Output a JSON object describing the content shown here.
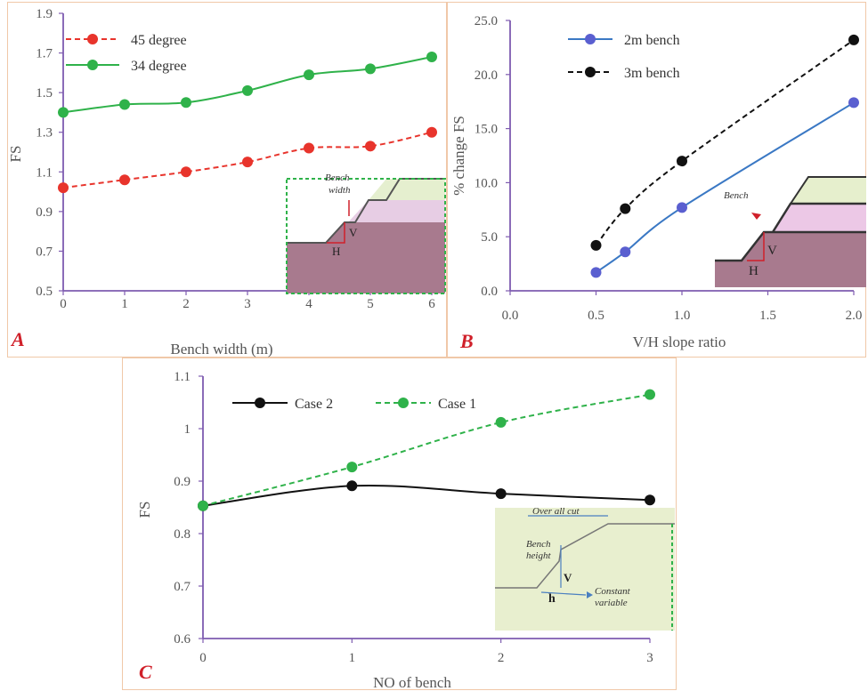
{
  "chart_data": [
    {
      "id": "A",
      "panel_label": "A",
      "type": "line",
      "xlabel": "Bench width (m)",
      "ylabel": "FS",
      "xlim": [
        0,
        6
      ],
      "ylim": [
        0.5,
        1.9
      ],
      "xticks": [
        "0",
        "1",
        "2",
        "3",
        "4",
        "5",
        "6"
      ],
      "yticks": [
        "0.5",
        "0.7",
        "0.9",
        "1.1",
        "1.3",
        "1.5",
        "1.7",
        "1.9"
      ],
      "x": [
        0,
        1,
        2,
        3,
        4,
        5,
        6
      ],
      "series": [
        {
          "name": "45 degree",
          "values": [
            1.02,
            1.06,
            1.1,
            1.15,
            1.22,
            1.23,
            1.3
          ],
          "color": "#e8342c",
          "dashed": true
        },
        {
          "name": "34 degree",
          "values": [
            1.4,
            1.44,
            1.45,
            1.51,
            1.59,
            1.62,
            1.68
          ],
          "color": "#2fb24a",
          "dashed": false
        }
      ],
      "legend": "top-left",
      "inset": {
        "label_top": "Bench",
        "label_bottom": "width",
        "v": "V",
        "h": "H"
      }
    },
    {
      "id": "B",
      "panel_label": "B",
      "type": "line",
      "xlabel": "V/H slope ratio",
      "ylabel": "% change FS",
      "xlim": [
        0,
        2
      ],
      "ylim": [
        0,
        25
      ],
      "xticks": [
        "0.0",
        "0.5",
        "1.0",
        "1.5",
        "2.0"
      ],
      "yticks": [
        "0.0",
        "5.0",
        "10.0",
        "15.0",
        "20.0",
        "25.0"
      ],
      "series": [
        {
          "name": "2m bench",
          "x": [
            0.5,
            0.67,
            1.0,
            2.0
          ],
          "values": [
            1.7,
            3.6,
            7.7,
            17.4
          ],
          "color": "#3a78c4",
          "marker": "#5a5fd0",
          "dashed": false
        },
        {
          "name": "3m bench",
          "x": [
            0.5,
            0.67,
            1.0,
            2.0
          ],
          "values": [
            4.2,
            7.6,
            12.0,
            23.2
          ],
          "color": "#111111",
          "marker": "#111111",
          "dashed": true
        }
      ],
      "legend": "top-left",
      "inset": {
        "label": "Bench",
        "v": "V",
        "h": "H"
      }
    },
    {
      "id": "C",
      "panel_label": "C",
      "type": "line",
      "xlabel": "NO of bench",
      "ylabel": "FS",
      "xlim": [
        0,
        3
      ],
      "ylim": [
        0.6,
        1.1
      ],
      "xticks": [
        "0",
        "1",
        "2",
        "3"
      ],
      "yticks": [
        "0.6",
        "0.7",
        "0.8",
        "0.9",
        "1",
        "1.1"
      ],
      "x": [
        0,
        1,
        2,
        3
      ],
      "series": [
        {
          "name": "Case 2",
          "values": [
            0.853,
            0.891,
            0.876,
            0.864
          ],
          "color": "#111111",
          "dashed": false
        },
        {
          "name": "Case 1",
          "values": [
            0.853,
            0.927,
            1.012,
            1.065
          ],
          "color": "#2fb24a",
          "dashed": true
        }
      ],
      "legend": "top",
      "inset": {
        "label_top": "Over all cut",
        "label_mid1": "Bench",
        "label_mid2": "height",
        "v": "V",
        "h": "h",
        "label_r1": "Constant",
        "label_r2": "variable"
      }
    }
  ]
}
